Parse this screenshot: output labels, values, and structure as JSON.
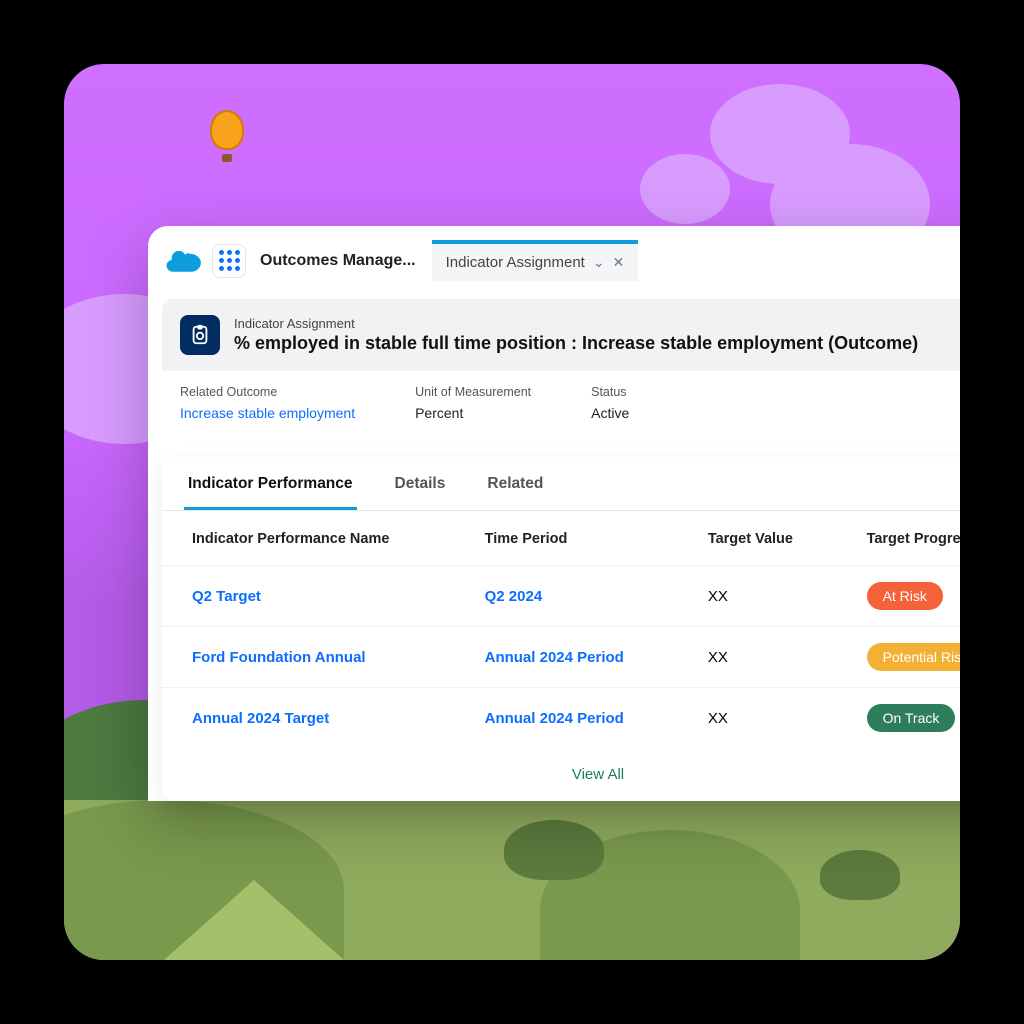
{
  "colors": {
    "accent": "#0d9dda",
    "link": "#0d6efd",
    "risk": "#f4623a",
    "potential": "#f2b134",
    "ontrack": "#2e7d5b"
  },
  "topbar": {
    "app_name": "Outcomes Manage...",
    "tab": {
      "label": "Indicator Assignment"
    }
  },
  "record": {
    "object_label": "Indicator Assignment",
    "title": "% employed in stable full time position : Increase stable employment (Outcome)",
    "fields": {
      "related_outcome": {
        "label": "Related Outcome",
        "value": "Increase stable employment",
        "is_link": true
      },
      "unit": {
        "label": "Unit of Measurement",
        "value": "Percent"
      },
      "status": {
        "label": "Status",
        "value": "Active"
      }
    }
  },
  "tabs": [
    "Indicator Performance",
    "Details",
    "Related"
  ],
  "table": {
    "columns": [
      "Indicator Performance Name",
      "Time Period",
      "Target Value",
      "Target Progress"
    ],
    "rows": [
      {
        "name": "Q2 Target",
        "period": "Q2 2024",
        "value": "XX",
        "progress": "At Risk",
        "progress_color": "#f4623a"
      },
      {
        "name": "Ford Foundation Annual",
        "period": "Annual 2024 Period",
        "value": "XX",
        "progress": "Potential Risk",
        "progress_color": "#f2b134"
      },
      {
        "name": "Annual 2024 Target",
        "period": "Annual 2024 Period",
        "value": "XX",
        "progress": "On Track",
        "progress_color": "#2e7d5b"
      }
    ],
    "view_all": "View All"
  }
}
